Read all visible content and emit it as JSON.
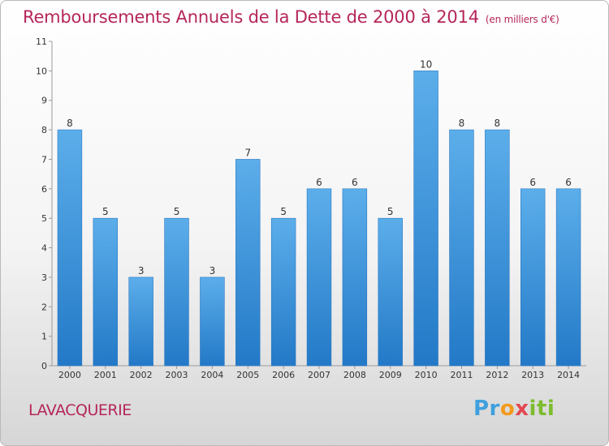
{
  "chart_data": {
    "type": "bar",
    "title": "Remboursements Annuels de la Dette de 2000 à 2014",
    "unit": "(en milliers d'€)",
    "categories": [
      "2000",
      "2001",
      "2002",
      "2003",
      "2004",
      "2005",
      "2006",
      "2007",
      "2008",
      "2009",
      "2010",
      "2011",
      "2012",
      "2013",
      "2014"
    ],
    "values": [
      8,
      5,
      3,
      5,
      3,
      7,
      5,
      6,
      6,
      5,
      10,
      8,
      8,
      6,
      6
    ],
    "ylim": [
      0,
      11
    ],
    "yticks": [
      0,
      1,
      2,
      3,
      4,
      5,
      6,
      7,
      8,
      9,
      10,
      11
    ],
    "xlabel": "",
    "ylabel": "",
    "grid": false,
    "bar_color": "#3a8fd8"
  },
  "commune": "LAVACQUERIE",
  "logo": {
    "parts": [
      "Pr",
      "o",
      "x",
      "iti"
    ]
  }
}
